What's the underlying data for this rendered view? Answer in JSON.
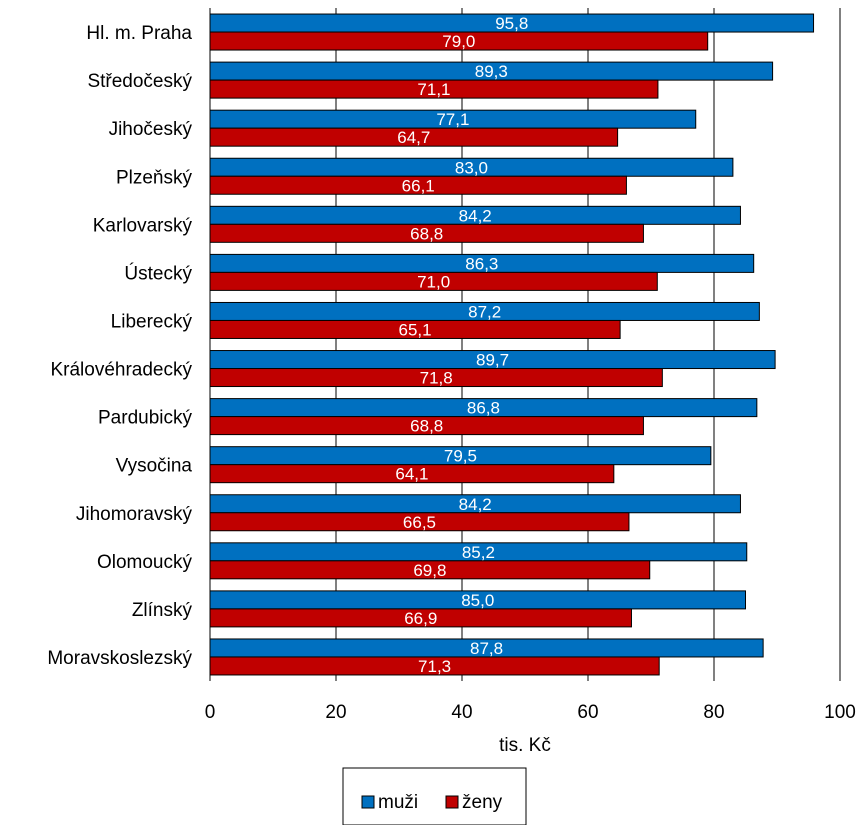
{
  "chart_data": {
    "type": "bar",
    "orientation": "horizontal",
    "categories": [
      "Hl. m. Praha",
      "Středočeský",
      "Jihočeský",
      "Plzeňský",
      "Karlovarský",
      "Ústecký",
      "Liberecký",
      "Královéhradecký",
      "Pardubický",
      "Vysočina",
      "Jihomoravský",
      "Olomoucký",
      "Zlínský",
      "Moravskoslezský"
    ],
    "series": [
      {
        "name": "muži",
        "color": "#0070c0",
        "values": [
          95.8,
          89.3,
          77.1,
          83.0,
          84.2,
          86.3,
          87.2,
          89.7,
          86.8,
          79.5,
          84.2,
          85.2,
          85.0,
          87.8
        ],
        "labels": [
          "95,8",
          "89,3",
          "77,1",
          "83,0",
          "84,2",
          "86,3",
          "87,2",
          "89,7",
          "86,8",
          "79,5",
          "84,2",
          "85,2",
          "85,0",
          "87,8"
        ]
      },
      {
        "name": "ženy",
        "color": "#c00000",
        "values": [
          79.0,
          71.1,
          64.7,
          66.1,
          68.8,
          71.0,
          65.1,
          71.8,
          68.8,
          64.1,
          66.5,
          69.8,
          66.9,
          71.3
        ],
        "labels": [
          "79,0",
          "71,1",
          "64,7",
          "66,1",
          "68,8",
          "71,0",
          "65,1",
          "71,8",
          "68,8",
          "64,1",
          "66,5",
          "69,8",
          "66,9",
          "71,3"
        ]
      }
    ],
    "xlabel": "tis. Kč",
    "xlim": [
      0,
      100
    ],
    "xticks": [
      "0",
      "20",
      "40",
      "60",
      "80",
      "100"
    ],
    "grid": "vertical",
    "legend_position": "bottom"
  }
}
